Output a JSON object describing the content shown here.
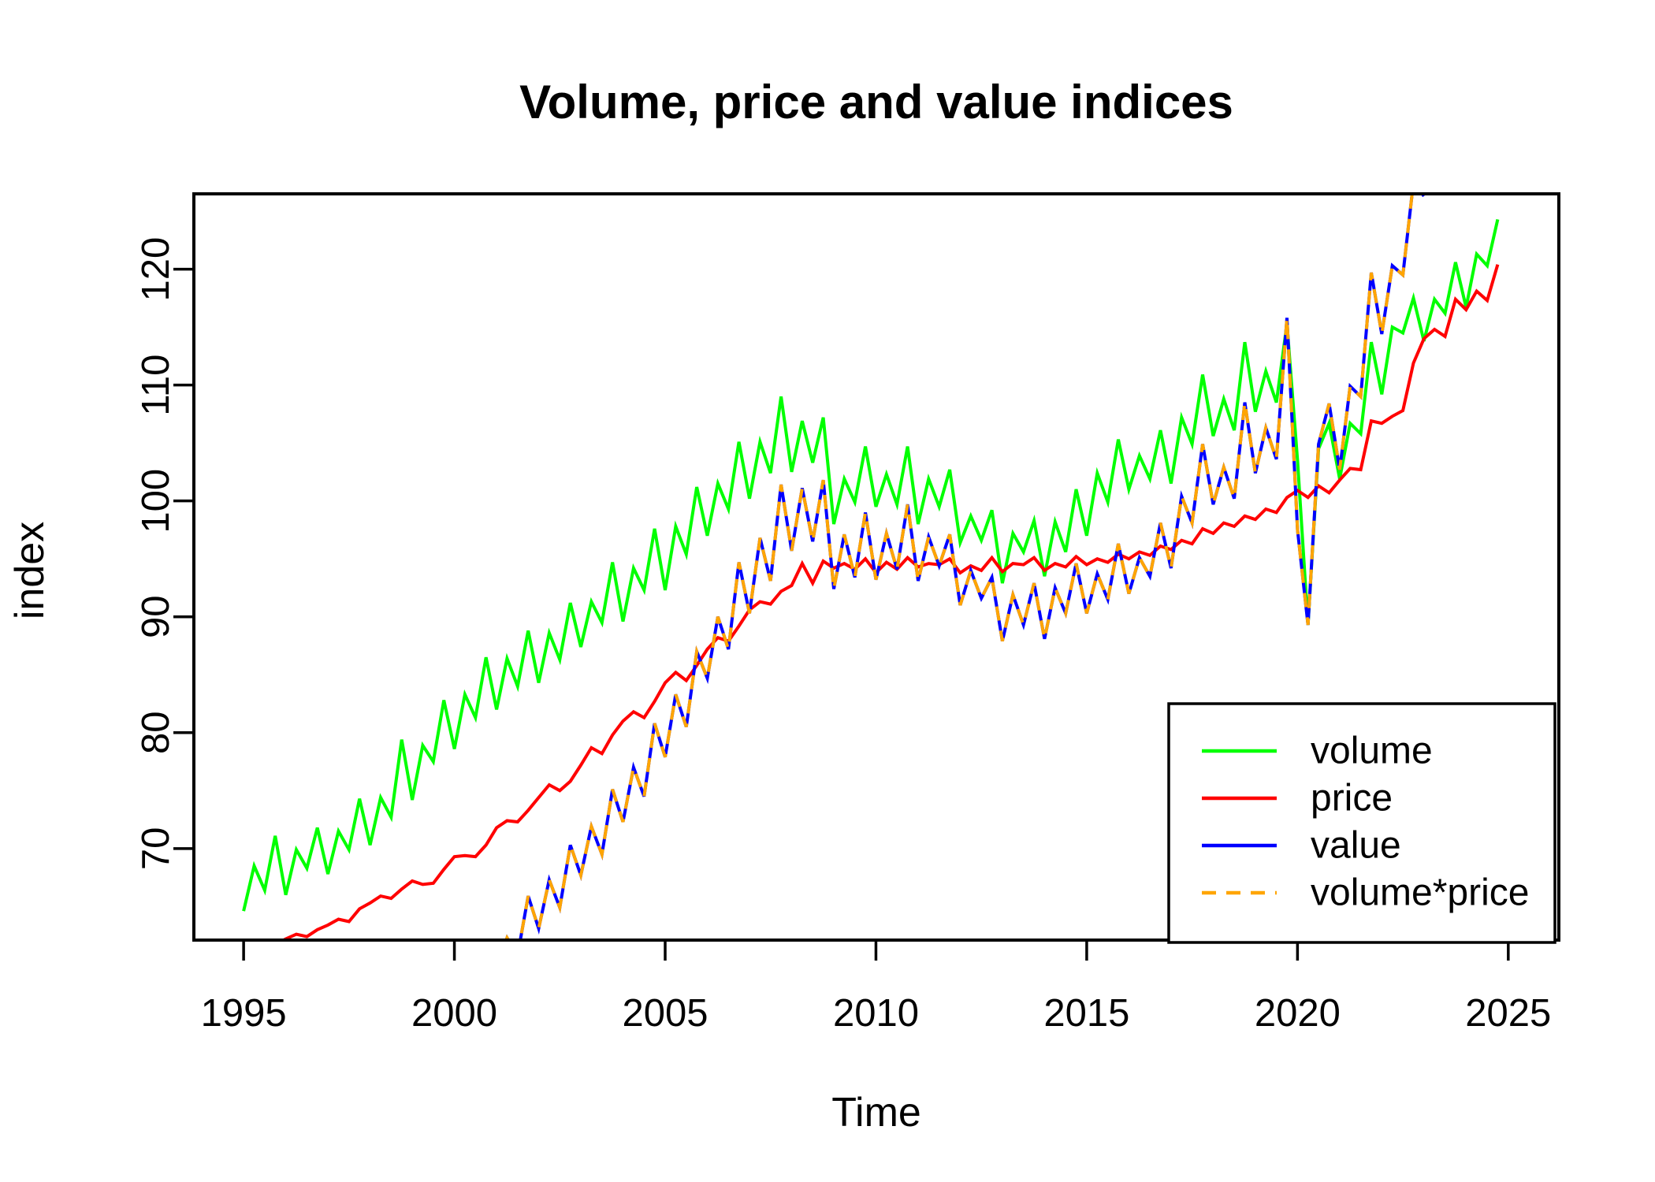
{
  "chart_data": {
    "type": "line",
    "title": "Volume, price and value indices",
    "xlabel": "Time",
    "ylabel": "index",
    "x_ticks": [
      1995,
      2000,
      2005,
      2010,
      2015,
      2020,
      2025
    ],
    "y_ticks": [
      70,
      80,
      90,
      100,
      110,
      120
    ],
    "xlim": [
      1993.82,
      2026.2
    ],
    "ylim": [
      62.1,
      126.5
    ],
    "grid": false,
    "legend_position": "bottomright",
    "axis_color": "#000000",
    "series": [
      {
        "name": "volume",
        "color": "#00FF00",
        "line_style": "solid",
        "start": 1995.0,
        "step": 0.25,
        "values": [
          64.6,
          68.5,
          66.4,
          71.1,
          66.0,
          69.9,
          68.3,
          71.8,
          67.8,
          71.5,
          69.9,
          74.3,
          70.3,
          74.4,
          72.7,
          79.4,
          74.2,
          78.9,
          77.5,
          82.8,
          78.6,
          83.3,
          81.3,
          86.5,
          82.0,
          86.4,
          84.0,
          88.8,
          84.3,
          88.6,
          86.3,
          91.2,
          87.4,
          91.3,
          89.5,
          94.7,
          89.6,
          94.2,
          92.3,
          97.6,
          92.3,
          97.8,
          95.4,
          101.2,
          97.0,
          101.5,
          99.3,
          105.1,
          100.2,
          105.1,
          102.4,
          109.0,
          102.5,
          106.9,
          103.3,
          107.2,
          98.0,
          101.9,
          99.9,
          104.7,
          99.5,
          102.3,
          99.7,
          104.7,
          98.0,
          101.9,
          99.5,
          102.7,
          96.4,
          98.7,
          96.6,
          99.2,
          92.9,
          97.2,
          95.6,
          98.3,
          93.5,
          98.2,
          95.6,
          101.0,
          97.0,
          102.4,
          99.9,
          105.3,
          101.0,
          103.9,
          101.9,
          106.1,
          101.5,
          107.2,
          104.9,
          110.9,
          105.6,
          108.8,
          106.1,
          113.7,
          107.7,
          111.2,
          108.5,
          115.3,
          103.5,
          89.3,
          104.5,
          106.7,
          101.9,
          106.7,
          105.8,
          113.7,
          109.2,
          115.0,
          114.5,
          117.5,
          113.8,
          117.4,
          116.2,
          120.6,
          116.7,
          121.3,
          120.3,
          124.3
        ]
      },
      {
        "name": "price",
        "color": "#FF0000",
        "line_style": "solid",
        "start": 1995.0,
        "step": 0.25,
        "values": [
          60.2,
          60.8,
          61.2,
          61.7,
          62.2,
          62.6,
          62.4,
          63.0,
          63.4,
          63.9,
          63.7,
          64.8,
          65.3,
          65.9,
          65.7,
          66.5,
          67.2,
          66.9,
          67.0,
          68.2,
          69.3,
          69.4,
          69.3,
          70.3,
          71.8,
          72.4,
          72.3,
          73.3,
          74.4,
          75.5,
          75.0,
          75.8,
          77.2,
          78.7,
          78.2,
          79.8,
          81.0,
          81.8,
          81.3,
          82.7,
          84.3,
          85.2,
          84.5,
          85.8,
          87.2,
          88.2,
          87.9,
          89.2,
          90.6,
          91.3,
          91.1,
          92.2,
          92.7,
          94.6,
          92.9,
          94.8,
          94.2,
          94.6,
          94.1,
          95.0,
          93.8,
          94.7,
          94.1,
          95.1,
          94.3,
          94.6,
          94.5,
          95.0,
          93.8,
          94.4,
          94.0,
          95.1,
          93.9,
          94.6,
          94.5,
          95.1,
          94.0,
          94.6,
          94.3,
          95.2,
          94.5,
          95.0,
          94.7,
          95.4,
          95.0,
          95.6,
          95.3,
          96.1,
          95.8,
          96.6,
          96.3,
          97.6,
          97.2,
          98.1,
          97.8,
          98.7,
          98.4,
          99.3,
          99.0,
          100.3,
          100.9,
          100.3,
          101.3,
          100.7,
          101.8,
          102.8,
          102.7,
          106.9,
          106.7,
          107.3,
          107.8,
          111.9,
          114.0,
          114.8,
          114.2,
          117.4,
          116.5,
          118.1,
          117.3,
          120.4
        ]
      },
      {
        "name": "value",
        "color": "#0000FF",
        "line_style": "solid",
        "start": 2001.0,
        "step": 0.25,
        "values": [
          59.8,
          62.3,
          60.8,
          65.9,
          63.1,
          67.3,
          64.9,
          70.3,
          67.7,
          71.9,
          69.5,
          75.1,
          72.3,
          77.0,
          74.5,
          80.8,
          77.9,
          83.3,
          80.5,
          87.0,
          84.7,
          90.0,
          87.2,
          94.7,
          90.3,
          96.8,
          93.1,
          101.4,
          95.7,
          101.1,
          96.5,
          101.8,
          92.4,
          97.1,
          93.4,
          99.0,
          93.2,
          97.2,
          94.1,
          99.7,
          93.1,
          96.9,
          94.4,
          97.1,
          91.0,
          94.0,
          91.6,
          93.4,
          87.9,
          91.9,
          89.3,
          92.9,
          88.1,
          92.5,
          90.3,
          94.6,
          90.3,
          93.7,
          91.5,
          96.3,
          92.0,
          95.1,
          93.5,
          98.1,
          94.2,
          100.4,
          98.1,
          104.9,
          99.7,
          102.9,
          100.2,
          108.5,
          102.4,
          106.3,
          103.6,
          115.8,
          97.5,
          89.3,
          104.9,
          108.4,
          102.7,
          109.9,
          109.0,
          119.7,
          114.4,
          120.3,
          119.5,
          127.5,
          126.3
        ]
      },
      {
        "name": "volume*price",
        "color": "#FFA500",
        "line_style": "dashed",
        "start": 2001.0,
        "step": 0.25,
        "values": [
          59.8,
          62.3,
          60.8,
          65.9,
          63.1,
          67.3,
          64.9,
          70.3,
          67.7,
          71.9,
          69.5,
          75.1,
          72.3,
          77.0,
          74.5,
          80.8,
          77.9,
          83.3,
          80.5,
          87.0,
          84.7,
          90.0,
          87.2,
          94.7,
          90.3,
          96.8,
          93.1,
          101.4,
          95.7,
          101.1,
          96.5,
          101.8,
          92.4,
          97.1,
          93.4,
          99.0,
          93.2,
          97.2,
          94.1,
          99.7,
          93.1,
          96.9,
          94.4,
          97.1,
          91.0,
          94.0,
          91.6,
          93.4,
          87.9,
          91.9,
          89.3,
          92.9,
          88.1,
          92.5,
          90.3,
          94.6,
          90.3,
          93.7,
          91.5,
          96.3,
          92.0,
          95.1,
          93.5,
          98.1,
          94.2,
          100.4,
          98.1,
          104.9,
          99.7,
          102.9,
          100.2,
          108.5,
          102.4,
          106.3,
          103.6,
          115.8,
          97.5,
          89.3,
          104.9,
          108.4,
          102.7,
          109.9,
          109.0,
          119.7,
          114.4,
          120.3,
          119.5,
          127.5,
          126.3
        ]
      }
    ],
    "legend": {
      "items": [
        "volume",
        "price",
        "value",
        "volume*price"
      ]
    }
  }
}
